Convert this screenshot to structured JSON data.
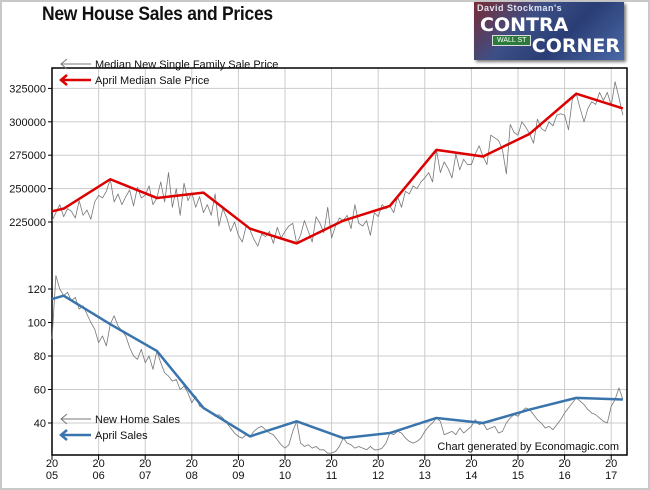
{
  "title": "New House Sales and Prices",
  "logo": {
    "line1": "David Stockman's",
    "line2": "CONTRA",
    "line3": "CORNER",
    "sign": "WALL ST"
  },
  "credit": "Chart generated by Economagic.com",
  "chart_data": {
    "type": "line",
    "title": "New House Sales and Prices",
    "x_range": [
      2005,
      2017.4
    ],
    "x_ticks": [
      {
        "value": 2005,
        "top": "20",
        "bottom": "05"
      },
      {
        "value": 2006,
        "top": "20",
        "bottom": "06"
      },
      {
        "value": 2007,
        "top": "20",
        "bottom": "07"
      },
      {
        "value": 2008,
        "top": "20",
        "bottom": "08"
      },
      {
        "value": 2009,
        "top": "20",
        "bottom": "09"
      },
      {
        "value": 2010,
        "top": "20",
        "bottom": "10"
      },
      {
        "value": 2011,
        "top": "20",
        "bottom": "11"
      },
      {
        "value": 2012,
        "top": "20",
        "bottom": "12"
      },
      {
        "value": 2013,
        "top": "20",
        "bottom": "13"
      },
      {
        "value": 2014,
        "top": "20",
        "bottom": "14"
      },
      {
        "value": 2015,
        "top": "20",
        "bottom": "15"
      },
      {
        "value": 2016,
        "top": "20",
        "bottom": "16"
      },
      {
        "value": 2017,
        "top": "20",
        "bottom": "17"
      }
    ],
    "price_axis": {
      "ticks": [
        "225000",
        "250000",
        "275000",
        "300000",
        "325000"
      ],
      "range": [
        225000,
        325000
      ]
    },
    "sales_axis": {
      "ticks": [
        "40",
        "60",
        "80",
        "100",
        "120"
      ],
      "range": [
        40,
        120
      ]
    },
    "grid": true,
    "legend_price": [
      {
        "name": "Median New Single Family Sale Price",
        "color": "#777777"
      },
      {
        "name": "April  Median Sale Price",
        "color": "#dd0000"
      }
    ],
    "legend_sales": [
      {
        "name": "New Home Sales",
        "color": "#777777"
      },
      {
        "name": "April Sales",
        "color": "#3a74ad"
      }
    ],
    "monthly_price": [
      226000,
      232000,
      238000,
      229000,
      235000,
      233000,
      228000,
      241000,
      230000,
      234000,
      227000,
      240000,
      245000,
      243000,
      248000,
      257000,
      240000,
      246000,
      238000,
      244000,
      249000,
      237000,
      251000,
      243000,
      245000,
      252000,
      238000,
      243000,
      255000,
      240000,
      262000,
      236000,
      250000,
      230000,
      254000,
      241000,
      247000,
      236000,
      244000,
      232000,
      238000,
      230000,
      246000,
      222000,
      235000,
      228000,
      218000,
      225000,
      215000,
      210000,
      222000,
      219000,
      212000,
      207000,
      216000,
      214000,
      218000,
      209000,
      221000,
      213000,
      218000,
      222000,
      224000,
      209000,
      215000,
      226000,
      218000,
      210000,
      229000,
      224000,
      217000,
      236000,
      213000,
      222000,
      228000,
      226000,
      230000,
      220000,
      238000,
      224000,
      222000,
      226000,
      215000,
      232000,
      229000,
      238000,
      235000,
      237000,
      232000,
      244000,
      236000,
      248000,
      246000,
      252000,
      250000,
      255000,
      258000,
      262000,
      255000,
      279000,
      262000,
      270000,
      265000,
      258000,
      276000,
      264000,
      272000,
      268000,
      268000,
      276000,
      282000,
      274000,
      268000,
      290000,
      288000,
      286000,
      279000,
      261000,
      298000,
      292000,
      290000,
      300000,
      296000,
      291000,
      284000,
      302000,
      295000,
      293000,
      300000,
      297000,
      305000,
      306000,
      305000,
      294000,
      317000,
      321000,
      310000,
      300000,
      310000,
      315000,
      313000,
      322000,
      316000,
      322000,
      312000,
      330000,
      318000,
      305000
    ],
    "april_price": [
      [
        2005.0,
        233000
      ],
      [
        2005.25,
        235000
      ],
      [
        2006.25,
        257000
      ],
      [
        2007.25,
        243000
      ],
      [
        2008.25,
        247000
      ],
      [
        2009.25,
        220000
      ],
      [
        2010.25,
        209000
      ],
      [
        2011.25,
        226000
      ],
      [
        2012.25,
        237000
      ],
      [
        2013.25,
        279000
      ],
      [
        2014.25,
        274000
      ],
      [
        2015.25,
        291000
      ],
      [
        2016.25,
        321000
      ],
      [
        2017.25,
        310000
      ]
    ],
    "monthly_sales": [
      90,
      128,
      120,
      116,
      118,
      113,
      115,
      108,
      110,
      105,
      100,
      96,
      88,
      92,
      86,
      99,
      104,
      98,
      95,
      92,
      85,
      80,
      78,
      84,
      76,
      80,
      72,
      83,
      76,
      70,
      68,
      65,
      66,
      60,
      62,
      58,
      52,
      56,
      50,
      49,
      48,
      46,
      44,
      45,
      43,
      40,
      37,
      34,
      32,
      31,
      33,
      32,
      35,
      37,
      38,
      36,
      34,
      33,
      30,
      27,
      25,
      27,
      35,
      41,
      28,
      26,
      27,
      25,
      26,
      24,
      24,
      22,
      22,
      23,
      26,
      31,
      28,
      27,
      25,
      26,
      25,
      24,
      26,
      24,
      24,
      25,
      28,
      34,
      33,
      35,
      34,
      31,
      29,
      28,
      29,
      31,
      35,
      38,
      40,
      43,
      41,
      33,
      34,
      35,
      33,
      37,
      34,
      36,
      38,
      42,
      39,
      40,
      36,
      37,
      38,
      34,
      35,
      40,
      43,
      45,
      44,
      47,
      49,
      48,
      45,
      42,
      40,
      37,
      38,
      36,
      39,
      42,
      46,
      49,
      52,
      55,
      53,
      51,
      48,
      46,
      45,
      43,
      41,
      40,
      50,
      54,
      61,
      54
    ],
    "april_sales": [
      [
        2005.0,
        114
      ],
      [
        2005.25,
        116
      ],
      [
        2006.25,
        99
      ],
      [
        2007.25,
        83
      ],
      [
        2008.25,
        49
      ],
      [
        2009.25,
        32
      ],
      [
        2010.25,
        41
      ],
      [
        2011.25,
        31
      ],
      [
        2012.25,
        34
      ],
      [
        2013.25,
        43
      ],
      [
        2014.25,
        40
      ],
      [
        2015.25,
        48
      ],
      [
        2016.25,
        55
      ],
      [
        2017.25,
        54
      ]
    ]
  }
}
